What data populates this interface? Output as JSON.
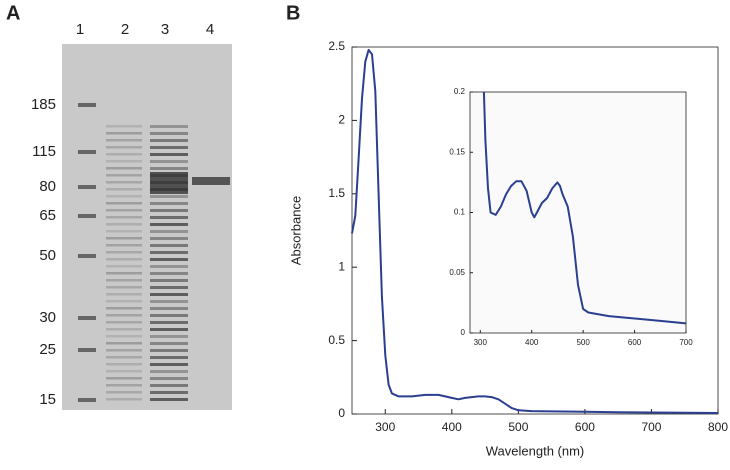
{
  "panel_labels": [
    "A",
    "B"
  ],
  "gel": {
    "lane_labels": [
      "1",
      "2",
      "3",
      "4"
    ],
    "marker_labels": [
      "185",
      "115",
      "80",
      "65",
      "50",
      "30",
      "25",
      "15"
    ]
  },
  "chart_data": [
    {
      "type": "line",
      "x_label": "Wavelength (nm)",
      "y_label": "Absorbance",
      "x": [
        250,
        255,
        260,
        265,
        270,
        275,
        280,
        285,
        290,
        295,
        300,
        305,
        310,
        320,
        340,
        360,
        380,
        400,
        410,
        420,
        440,
        450,
        460,
        470,
        480,
        490,
        500,
        520,
        550,
        600,
        650,
        700,
        750,
        800
      ],
      "values": [
        1.23,
        1.35,
        1.75,
        2.15,
        2.4,
        2.48,
        2.45,
        2.2,
        1.5,
        0.8,
        0.4,
        0.2,
        0.14,
        0.12,
        0.12,
        0.13,
        0.13,
        0.11,
        0.1,
        0.11,
        0.12,
        0.12,
        0.115,
        0.1,
        0.07,
        0.04,
        0.025,
        0.02,
        0.018,
        0.015,
        0.012,
        0.01,
        0.008,
        0.007
      ],
      "color": "#2a3f8f",
      "xlim": [
        250,
        800
      ],
      "ylim": [
        0,
        2.5
      ],
      "xticks": [
        300,
        400,
        500,
        600,
        700,
        800
      ],
      "yticks": [
        0,
        0.5,
        1,
        1.5,
        2,
        2.5
      ]
    },
    {
      "type": "line",
      "x": [
        307,
        310,
        315,
        320,
        330,
        340,
        350,
        360,
        370,
        380,
        390,
        400,
        405,
        410,
        420,
        430,
        440,
        450,
        455,
        460,
        470,
        480,
        490,
        500,
        510,
        550,
        600,
        650,
        700
      ],
      "values": [
        0.2,
        0.16,
        0.12,
        0.1,
        0.098,
        0.105,
        0.115,
        0.122,
        0.126,
        0.126,
        0.118,
        0.1,
        0.096,
        0.1,
        0.108,
        0.112,
        0.12,
        0.125,
        0.122,
        0.115,
        0.105,
        0.08,
        0.04,
        0.02,
        0.017,
        0.014,
        0.012,
        0.01,
        0.008
      ],
      "color": "#2a3f8f",
      "xlim": [
        280,
        700
      ],
      "ylim": [
        0,
        0.2
      ],
      "xticks": [
        300,
        400,
        500,
        600,
        700
      ],
      "yticks": [
        0,
        0.05,
        0.1,
        0.15,
        0.2
      ]
    }
  ]
}
